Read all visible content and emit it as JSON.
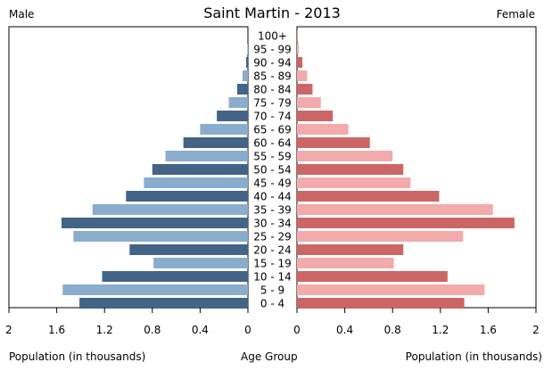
{
  "chart_data": {
    "type": "bar",
    "title": "Saint Martin - 2013",
    "left_label": "Male",
    "right_label": "Female",
    "left_axis_title": "Population (in thousands)",
    "center_axis_title": "Age Group",
    "right_axis_title": "Population (in thousands)",
    "xlim": [
      0,
      2
    ],
    "x_ticks": [
      "2",
      "1.6",
      "1.2",
      "0.8",
      "0.4",
      "0"
    ],
    "x_tick_values": [
      2,
      1.6,
      1.2,
      0.8,
      0.4,
      0
    ],
    "categories": [
      "0 - 4",
      "5 - 9",
      "10 - 14",
      "15 - 19",
      "20 - 24",
      "25 - 29",
      "30 - 34",
      "35 - 39",
      "40 - 44",
      "45 - 49",
      "50 - 54",
      "55 - 59",
      "60 - 64",
      "65 - 69",
      "70 - 74",
      "75 - 79",
      "80 - 84",
      "85 - 89",
      "90 - 94",
      "95 - 99",
      "100+"
    ],
    "male": [
      1.41,
      1.55,
      1.22,
      0.79,
      0.99,
      1.46,
      1.56,
      1.3,
      1.02,
      0.87,
      0.8,
      0.69,
      0.54,
      0.4,
      0.26,
      0.16,
      0.09,
      0.045,
      0.015,
      0.005,
      0.0
    ],
    "female": [
      1.4,
      1.57,
      1.26,
      0.81,
      0.89,
      1.39,
      1.82,
      1.64,
      1.19,
      0.95,
      0.89,
      0.8,
      0.61,
      0.43,
      0.3,
      0.2,
      0.13,
      0.085,
      0.045,
      0.015,
      0.005
    ]
  },
  "colors": {
    "male_dark": "#436387",
    "male_light": "#8aaccd",
    "female_dark": "#cc6666",
    "female_light": "#f2aaaa",
    "axis": "#000000"
  }
}
